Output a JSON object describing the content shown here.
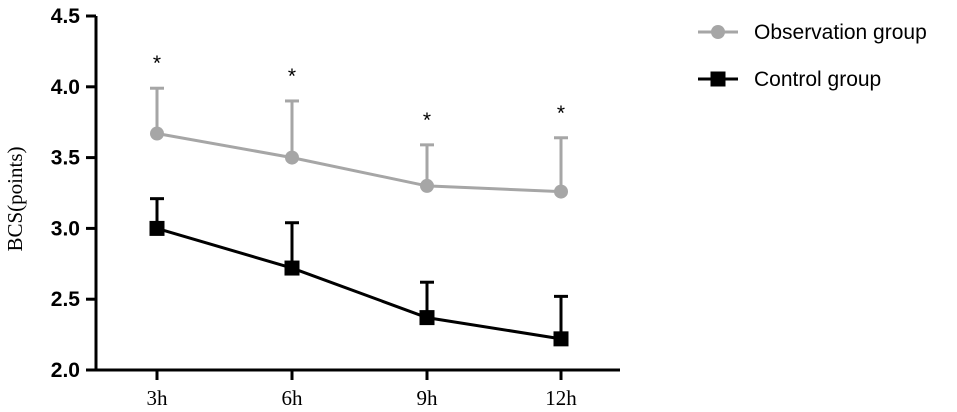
{
  "chart_data": {
    "type": "line",
    "title": "",
    "xlabel": "",
    "ylabel": "BCS(points)",
    "categories": [
      "3h",
      "6h",
      "9h",
      "12h"
    ],
    "ylim": [
      2.0,
      4.5
    ],
    "yticks": [
      "2.0",
      "2.5",
      "3.0",
      "3.5",
      "4.0",
      "4.5"
    ],
    "grid": false,
    "legend_position": "top-right",
    "series": [
      {
        "name": "Observation group",
        "values": [
          3.67,
          3.5,
          3.3,
          3.26
        ],
        "error_upper": [
          0.32,
          0.4,
          0.29,
          0.38
        ],
        "marker": "circle",
        "color": "#a6a6a6"
      },
      {
        "name": "Control group",
        "values": [
          3.0,
          2.72,
          2.37,
          2.22
        ],
        "error_upper": [
          0.21,
          0.32,
          0.25,
          0.3
        ],
        "marker": "square",
        "color": "#000000"
      }
    ],
    "annotations": [
      "*",
      "*",
      "*",
      "*"
    ]
  }
}
